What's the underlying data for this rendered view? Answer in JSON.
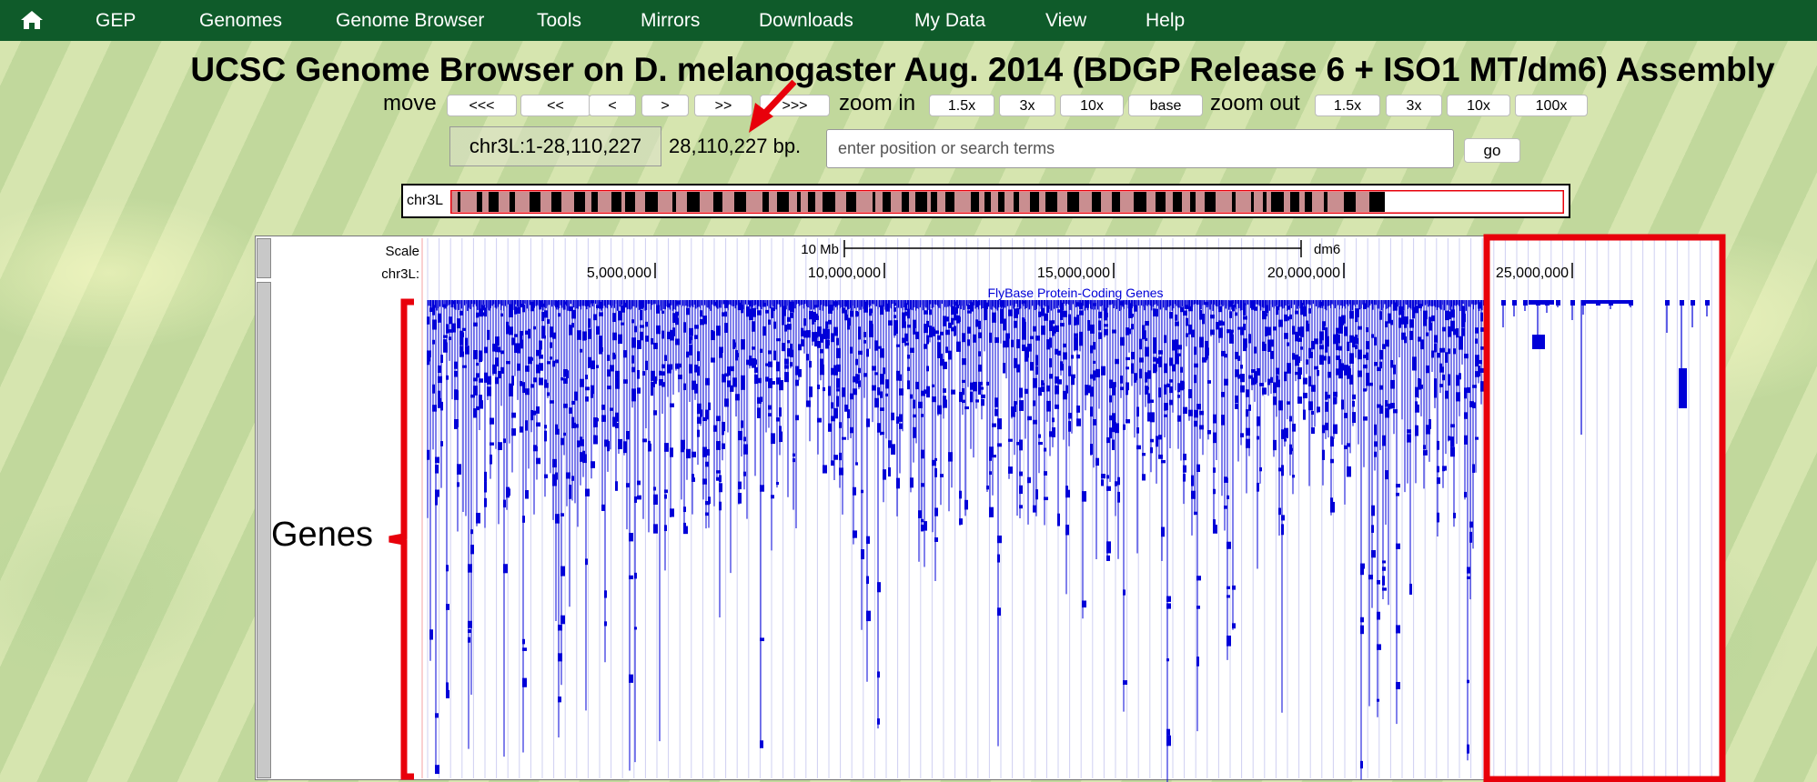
{
  "nav": {
    "home_icon": "home-icon",
    "items": [
      "GEP",
      "Genomes",
      "Genome Browser",
      "Tools",
      "Mirrors",
      "Downloads",
      "My Data",
      "View",
      "Help"
    ]
  },
  "title": "UCSC Genome Browser on D. melanogaster Aug. 2014 (BDGP Release 6 + ISO1 MT/dm6) Assembly",
  "controls": {
    "move_label": "move",
    "move_buttons": [
      "<<<",
      "<<",
      "<",
      ">",
      ">>",
      ">>>"
    ],
    "zoom_in_label": "zoom in",
    "zoom_in_buttons": [
      "1.5x",
      "3x",
      "10x",
      "base"
    ],
    "zoom_out_label": "zoom out",
    "zoom_out_buttons": [
      "1.5x",
      "3x",
      "10x",
      "100x"
    ]
  },
  "position": {
    "value": "chr3L:1-28,110,227",
    "size": "28,110,227 bp.",
    "search_placeholder": "enter position or search terms",
    "go_label": "go"
  },
  "ideogram": {
    "chrom_label": "chr3L"
  },
  "track": {
    "scale_label": "Scale",
    "scale_bar_text": "10 Mb",
    "assembly": "dm6",
    "chrom_label": "chr3L:",
    "ticks": [
      "5,000,000",
      "10,000,000",
      "15,000,000",
      "20,000,000",
      "25,000,000"
    ],
    "gene_track_title": "FlyBase Protein-Coding Genes"
  },
  "annotation": {
    "genes_label": "Genes",
    "highlight_color": "#e8000b",
    "gene_color": "#0000d8"
  }
}
